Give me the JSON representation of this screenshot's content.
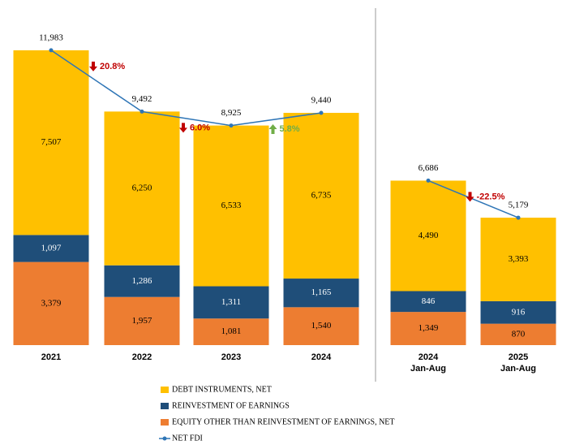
{
  "chart_data": {
    "type": "stacked_bar_line",
    "categories": [
      "2021",
      "2022",
      "2023",
      "2024",
      "2024\nJan-Aug",
      "2025\nJan-Aug"
    ],
    "breaks": [
      4
    ],
    "series": [
      {
        "name": "DEBT INSTRUMENTS, NET",
        "color": "#ffc000",
        "kind": "bar",
        "label_color": "#000000",
        "values": [
          7507,
          6250,
          6533,
          6735,
          4490,
          3393
        ],
        "value_labels": [
          "7,507",
          "6,250",
          "6,533",
          "6,735",
          "4,490",
          "3,393"
        ]
      },
      {
        "name": "REINVESTMENT OF EARNINGS",
        "color": "#1f4e79",
        "kind": "bar",
        "label_color": "#ffffff",
        "values": [
          1097,
          1286,
          1311,
          1165,
          846,
          916
        ],
        "value_labels": [
          "1,097",
          "1,286",
          "1,311",
          "1,165",
          "846",
          "916"
        ]
      },
      {
        "name": "EQUITY OTHER THAN REINVESTMENT OF EARNINGS, NET",
        "color": "#ed7d31",
        "kind": "bar",
        "label_color": "#000000",
        "values": [
          3379,
          1957,
          1081,
          1540,
          1349,
          870
        ],
        "value_labels": [
          "3,379",
          "1,957",
          "1,081",
          "1,540",
          "1,349",
          "870"
        ]
      },
      {
        "name": "NET FDI",
        "color": "#2e75b6",
        "kind": "line",
        "values": [
          11983,
          9492,
          8925,
          9440,
          6686,
          5179
        ],
        "value_labels": [
          "11,983",
          "9,492",
          "8,925",
          "9,440",
          "6,686",
          "5,179"
        ]
      }
    ],
    "annotations": [
      {
        "text": "20.8%",
        "direction": "down",
        "color": "#c00000"
      },
      {
        "text": "6.0%",
        "direction": "down",
        "color": "#c00000"
      },
      {
        "text": "5.8%",
        "direction": "up",
        "color": "#70ad47"
      },
      {
        "text": "-22.5%",
        "direction": "down",
        "color": "#c00000"
      }
    ]
  }
}
